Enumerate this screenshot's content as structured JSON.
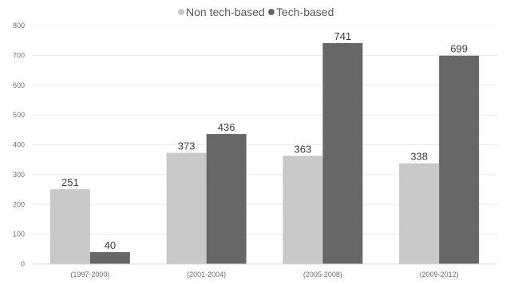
{
  "chart_data": {
    "type": "bar",
    "categories": [
      "(1997-2000)",
      "(2001-2004)",
      "(2005-2008)",
      "(2009-2012)"
    ],
    "series": [
      {
        "name": "Non tech-based",
        "values": [
          251,
          373,
          363,
          338
        ],
        "color": "#c9c9c9"
      },
      {
        "name": "Tech-based",
        "values": [
          40,
          436,
          741,
          699
        ],
        "color": "#676767"
      }
    ],
    "ylim": [
      0,
      800
    ],
    "yticks": [
      0,
      100,
      200,
      300,
      400,
      500,
      600,
      700,
      800
    ],
    "grid": true,
    "legend_position": "top-center",
    "title": "",
    "xlabel": "",
    "ylabel": ""
  }
}
